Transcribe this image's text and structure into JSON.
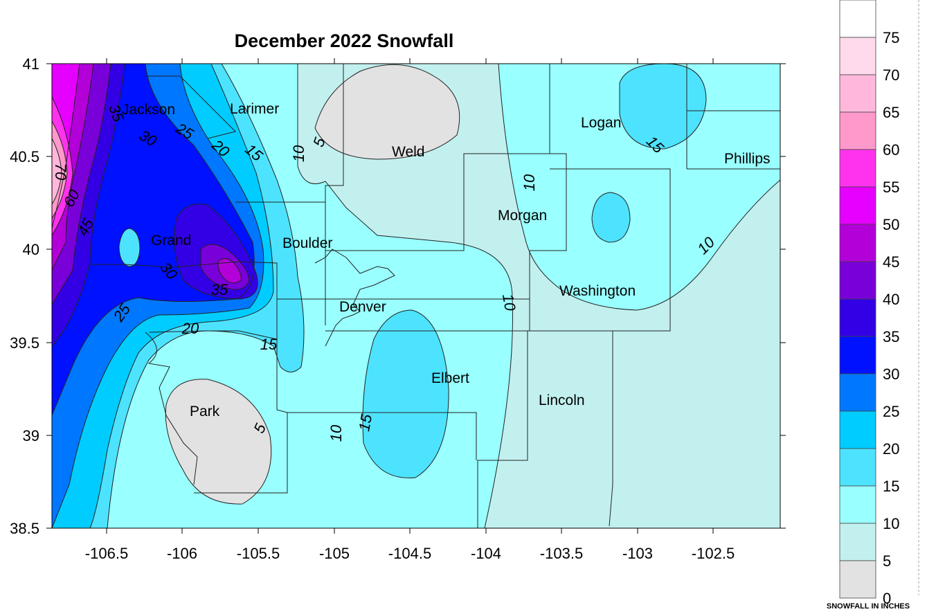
{
  "title": "December 2022 Snowfall",
  "x_ticks": [
    "-106.5",
    "-106",
    "-105.5",
    "-105",
    "-104.5",
    "-104",
    "-103.5",
    "-103",
    "-102.5"
  ],
  "y_ticks": [
    "41",
    "40.5",
    "40",
    "39.5",
    "39",
    "38.5"
  ],
  "counties": [
    "Jackson",
    "Larimer",
    "Weld",
    "Logan",
    "Phillips",
    "Morgan",
    "Grand",
    "Boulder",
    "Denver",
    "Washington",
    "Elbert",
    "Lincoln",
    "Park"
  ],
  "contour_labels": [
    "70",
    "60",
    "45",
    "35",
    "30",
    "25",
    "20",
    "15",
    "10",
    "5",
    "30",
    "35",
    "25",
    "20",
    "15",
    "10",
    "15",
    "5",
    "10",
    "15",
    "10"
  ],
  "legend": {
    "levels": [
      "75",
      "70",
      "65",
      "60",
      "55",
      "50",
      "45",
      "40",
      "35",
      "30",
      "25",
      "20",
      "15",
      "10",
      "5",
      "0"
    ],
    "unit": "SNOWFALL IN INCHES",
    "colors": [
      "#ffffff",
      "#ffd9ec",
      "#ffb8dc",
      "#ff99cc",
      "#ff33ee",
      "#e600ff",
      "#b300d9",
      "#7a00d9",
      "#3300e6",
      "#0011ff",
      "#0077ff",
      "#00ccff",
      "#4de3ff",
      "#99ffff",
      "#c2f0ef",
      "#e2e2e2"
    ]
  },
  "colors": {
    "c0_5": "#e2e2e2",
    "c5_10": "#c2f0ef",
    "c10_15": "#99ffff",
    "c15_20": "#4de3ff",
    "c20_25": "#00ccff",
    "c25_30": "#0077ff",
    "c30_35": "#0011ff",
    "c35_40": "#3300e6",
    "c40_45": "#7a00d9",
    "c45_50": "#b300d9",
    "c50_55": "#e600ff",
    "c55_60": "#ff33ee",
    "c60_65": "#ff99cc",
    "c65_70": "#ffb8dc",
    "c70_75": "#ffd9ec"
  },
  "chart_data": {
    "type": "heatmap",
    "title": "December 2022 Snowfall",
    "xlim": [
      -106.87,
      -102.05
    ],
    "ylim": [
      38.5,
      41.0
    ],
    "x_ticks": [
      -106.5,
      -106,
      -105.5,
      -105,
      -104.5,
      -104,
      -103.5,
      -103,
      -102.5
    ],
    "y_ticks": [
      38.5,
      39,
      39.5,
      40,
      40.5,
      41
    ],
    "contour_levels": [
      0,
      5,
      10,
      15,
      20,
      25,
      30,
      35,
      40,
      45,
      50,
      55,
      60,
      65,
      70,
      75
    ],
    "units": "SNOWFALL IN INCHES"
  }
}
